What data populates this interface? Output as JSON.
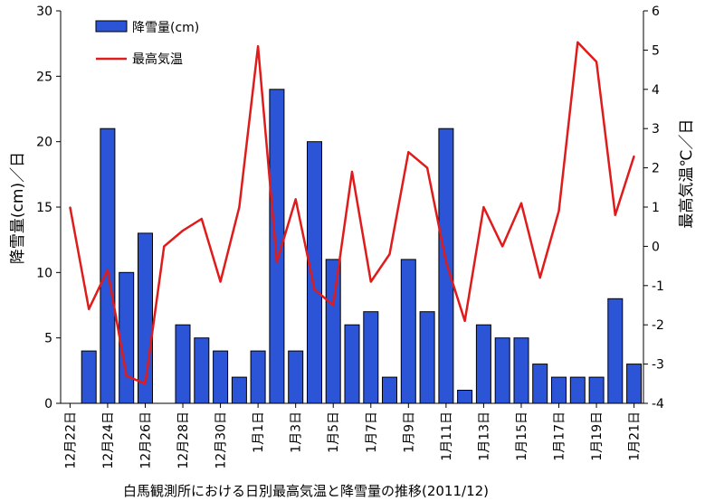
{
  "chart_data": {
    "type": "bar+line",
    "title": "",
    "xlabel": "白馬観測所における日別最高気温と降雪量の推移(2011/12)",
    "ylabel_left": "降雪量(cm)／日",
    "ylabel_right": "最高気温℃／日",
    "ylim_left": [
      0,
      30
    ],
    "ylim_right": [
      -4,
      6
    ],
    "yticks_left": [
      "0",
      "5",
      "10",
      "15",
      "20",
      "25",
      "30"
    ],
    "yticks_right": [
      "-4",
      "-3",
      "-2",
      "-1",
      "0",
      "1",
      "2",
      "3",
      "4",
      "5",
      "6"
    ],
    "categories": [
      "12月22日",
      "12月23日",
      "12月24日",
      "12月25日",
      "12月26日",
      "12月27日",
      "12月28日",
      "12月29日",
      "12月30日",
      "12月31日",
      "1月1日",
      "1月2日",
      "1月3日",
      "1月4日",
      "1月5日",
      "1月6日",
      "1月7日",
      "1月8日",
      "1月9日",
      "1月10日",
      "1月11日",
      "1月12日",
      "1月13日",
      "1月14日",
      "1月15日",
      "1月16日",
      "1月17日",
      "1月18日",
      "1月19日",
      "1月20日",
      "1月21日"
    ],
    "tick_labels": [
      "12月22日",
      "12月24日",
      "12月26日",
      "12月28日",
      "12月30日",
      "1月1日",
      "1月3日",
      "1月5日",
      "1月7日",
      "1月9日",
      "1月11日",
      "1月13日",
      "1月15日",
      "1月17日",
      "1月19日",
      "1月21日"
    ],
    "series": [
      {
        "name": "降雪量(cm)",
        "kind": "bar",
        "axis": "left",
        "color": "#2B55D6",
        "values": [
          0,
          4,
          21,
          10,
          13,
          0,
          6,
          5,
          4,
          2,
          4,
          24,
          4,
          20,
          11,
          6,
          7,
          2,
          11,
          7,
          21,
          1,
          6,
          5,
          5,
          3,
          2,
          2,
          2,
          8,
          3
        ]
      },
      {
        "name": "最高気温",
        "kind": "line",
        "axis": "right",
        "color": "#E01B1B",
        "values": [
          1.0,
          -1.6,
          -0.6,
          -3.3,
          -3.5,
          0.0,
          0.4,
          0.7,
          -0.9,
          1.0,
          5.1,
          -0.4,
          1.2,
          -1.1,
          -1.5,
          1.9,
          -0.9,
          -0.2,
          2.4,
          2.0,
          -0.4,
          -1.9,
          1.0,
          0.0,
          1.1,
          -0.8,
          0.9,
          5.2,
          4.7,
          0.8,
          2.3
        ]
      }
    ],
    "legend_position": "top-left"
  }
}
